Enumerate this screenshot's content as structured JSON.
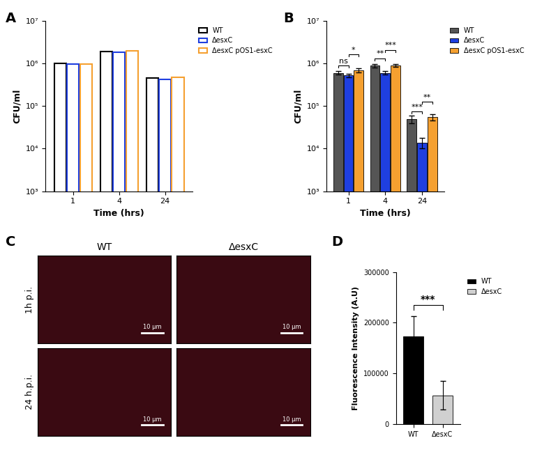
{
  "chart_data": [
    {
      "type": "bar",
      "title": "A",
      "x_label": "Time (hrs)",
      "y_label": "CFU/ml",
      "categories": [
        "1",
        "4",
        "24"
      ],
      "log": "y",
      "ylim": [
        1000,
        10000000
      ],
      "yticks": [
        {
          "value": 1000,
          "label": "10³"
        },
        {
          "value": 10000,
          "label": "10⁴"
        },
        {
          "value": 100000,
          "label": "10⁵"
        },
        {
          "value": 1000000,
          "label": "10⁶"
        },
        {
          "value": 10000000,
          "label": "10⁷"
        }
      ],
      "legend": "upper left",
      "series": [
        {
          "name": "WT",
          "color": "#000000",
          "values": [
            1000000,
            1900000,
            450000
          ]
        },
        {
          "name": "ΔesxC",
          "color": "#1f3fe0",
          "values": [
            950000,
            1800000,
            420000
          ]
        },
        {
          "name": "ΔesxC pOS1-esxC",
          "color": "#f5a030",
          "values": [
            950000,
            1950000,
            470000
          ]
        }
      ]
    },
    {
      "type": "bar",
      "title": "B",
      "x_label": "Time (hrs)",
      "y_label": "CFU/ml",
      "categories": [
        "1",
        "4",
        "24"
      ],
      "log": "y",
      "ylim": [
        1000,
        10000000
      ],
      "yticks": [
        {
          "value": 1000,
          "label": "10³"
        },
        {
          "value": 10000,
          "label": "10⁴"
        },
        {
          "value": 100000,
          "label": "10⁵"
        },
        {
          "value": 1000000,
          "label": "10⁶"
        },
        {
          "value": 10000000,
          "label": "10⁷"
        }
      ],
      "legend": "upper left",
      "series": [
        {
          "name": "WT",
          "color": "#555555",
          "values": [
            600000,
            880000,
            50000
          ],
          "errors": [
            50000,
            80000,
            10000
          ]
        },
        {
          "name": "ΔesxC",
          "color": "#1f3fe0",
          "values": [
            520000,
            600000,
            14000
          ],
          "errors": [
            50000,
            50000,
            4000
          ]
        },
        {
          "name": "ΔesxC pOS1-esxC",
          "color": "#f5a030",
          "values": [
            700000,
            900000,
            55000
          ],
          "errors": [
            80000,
            60000,
            10000
          ]
        }
      ],
      "annotations": [
        {
          "category": 0,
          "between": [
            0,
            1
          ],
          "label": "ns"
        },
        {
          "category": 0,
          "between": [
            1,
            2
          ],
          "label": "*"
        },
        {
          "category": 1,
          "between": [
            0,
            1
          ],
          "label": "**"
        },
        {
          "category": 1,
          "between": [
            1,
            2
          ],
          "label": "***"
        },
        {
          "category": 2,
          "between": [
            0,
            1
          ],
          "label": "***"
        },
        {
          "category": 2,
          "between": [
            1,
            2
          ],
          "label": "**"
        }
      ]
    },
    {
      "type": "image",
      "title": "C",
      "columns": [
        "WT",
        "ΔesxC"
      ],
      "rows": [
        "1h p.i.",
        "24 h.p.i."
      ],
      "scale_bar": "10 µm"
    },
    {
      "type": "bar",
      "title": "D",
      "y_label": "Fluorescence Intensity (A.U)",
      "categories": [
        "WT",
        "ΔesxC"
      ],
      "values": [
        173000,
        57000
      ],
      "errors": [
        40000,
        28000
      ],
      "colors": [
        "#000000",
        "#d0d0d0"
      ],
      "ylim": [
        0,
        300000
      ],
      "yticks": [
        0,
        100000,
        200000,
        300000
      ],
      "legend": "upper left",
      "annotations": [
        {
          "between": [
            0,
            1
          ],
          "label": "***"
        }
      ]
    }
  ]
}
